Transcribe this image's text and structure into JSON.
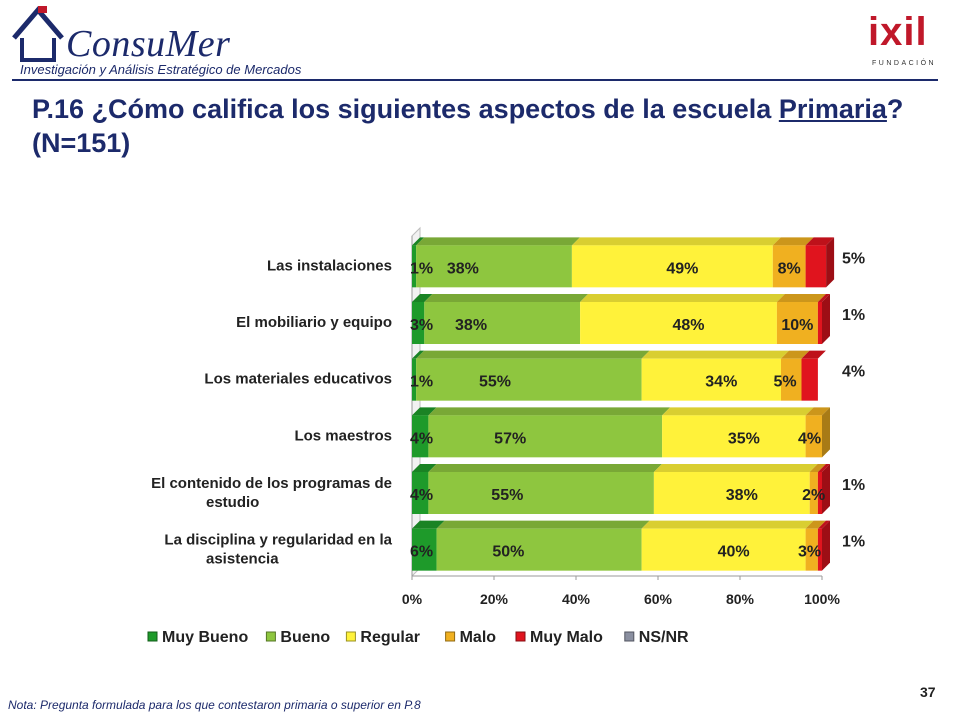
{
  "header": {
    "brand_name": "ConsuMer",
    "brand_tagline": "Investigación y Análisis Estratégico de Mercados",
    "partner_name": "ixil",
    "partner_sub": "FUNDACIÓN"
  },
  "title": {
    "part1": "P.16  ¿Cómo califica los siguientes aspectos de la escuela ",
    "underlined": "Primaria",
    "part2": "? (N=151)"
  },
  "footer": {
    "note": "Nota: Pregunta formulada para los que contestaron primaria o superior en P.8",
    "page_number": "37"
  },
  "colors": {
    "Muy Bueno": "#1e9a2a",
    "Bueno": "#8ec63f",
    "Regular": "#fff23a",
    "Malo": "#f0b020",
    "Muy Malo": "#e0141e",
    "NS/NR": "#8a8fa0"
  },
  "chart_data": {
    "type": "bar",
    "orientation": "horizontal",
    "stacked": true,
    "categories": [
      "Las instalaciones",
      "El mobiliario y equipo",
      "Los materiales educativos",
      "Los maestros",
      "El contenido de los programas de estudio",
      "La disciplina y regularidad en la asistencia"
    ],
    "series": [
      {
        "name": "Muy Bueno",
        "values": [
          1,
          3,
          1,
          4,
          4,
          6
        ],
        "labels": [
          "1%",
          "3%",
          "1%",
          "4%",
          "4%",
          "6%"
        ]
      },
      {
        "name": "Bueno",
        "values": [
          38,
          38,
          55,
          57,
          55,
          50
        ],
        "labels": [
          "38%",
          "38%",
          "55%",
          "57%",
          "55%",
          "50%"
        ]
      },
      {
        "name": "Regular",
        "values": [
          49,
          48,
          34,
          35,
          38,
          40
        ],
        "labels": [
          "49%",
          "48%",
          "34%",
          "35%",
          "38%",
          "40%"
        ]
      },
      {
        "name": "Malo",
        "values": [
          8,
          10,
          5,
          4,
          2,
          3
        ],
        "labels": [
          "8%",
          "10%",
          "5%",
          "4%",
          "2%",
          "3%"
        ]
      },
      {
        "name": "Muy Malo",
        "values": [
          5,
          1,
          4,
          0,
          1,
          1
        ],
        "labels": [
          "5%",
          "1%",
          "4%",
          "",
          "1%",
          "1%"
        ]
      },
      {
        "name": "NS/NR",
        "values": [
          0,
          0,
          0,
          0,
          0,
          0
        ],
        "labels": [
          "",
          "",
          "",
          "",
          "",
          ""
        ]
      }
    ],
    "x_ticks": [
      "0%",
      "20%",
      "40%",
      "60%",
      "80%",
      "100%"
    ],
    "xlim": [
      0,
      100
    ],
    "legend": [
      "Muy Bueno",
      "Bueno",
      "Regular",
      "Malo",
      "Muy Malo",
      "NS/NR"
    ],
    "legend_position": "bottom"
  }
}
